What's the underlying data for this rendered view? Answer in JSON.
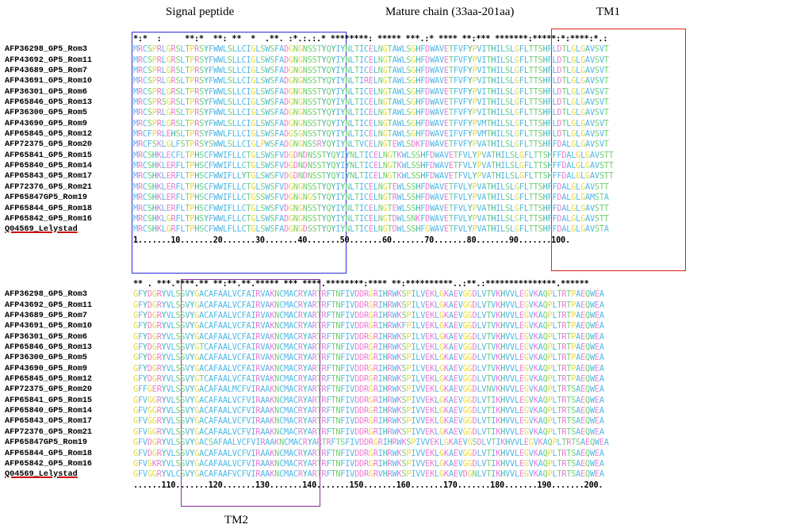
{
  "headers": {
    "signal_peptide": "Signal peptide",
    "mature_chain": "Mature chain (33aa-201aa)",
    "tm1": "TM1",
    "tm2": "TM2"
  },
  "colors": {
    "signal_box": "#2c2cd8",
    "tm1_box": "#e02020",
    "tm2_box": "#8a2b9a",
    "reference_underline": "#cc0000",
    "residue_hydrophobic": "#4fb8e6",
    "residue_polar": "#6fcf6f",
    "residue_positive": "#e67ad8",
    "residue_negative": "#f07ad0",
    "residue_special": "#e8d83a",
    "residue_substitution": "#000000"
  },
  "alignment": {
    "block1": {
      "consensus": "*:*  :     **:*  **: **  *  .**. :*.:.:.* ********: ***** ***.:* **** **:*** *******:*****:*:****:*.:",
      "scale": "1.......10.......20.......30.......40.......50.......60.......70.......80.......90.......100.",
      "sequences": [
        {
          "name": "AFP36298_GP5_Rom3",
          "seq": "MRCSPRLGRSLTPRSYFWWLSLLCIGLSWSFADGNGNSSTYQYIYNLTICELNGTAWLSGHFDWAVETFVFYPVITHILSLGFLTTSHFLDTLGLGAVSVT"
        },
        {
          "name": "AFP43692_GP5_Rom11",
          "seq": "MRCSPRLGRSLTPRSYFWWLSLLCIGLSWSFADGNGNSSTYQYIYNLTICELNGTAWLSGHFDWAVETFVFYPVITHILSLGFLTTSHFLDTLGLGAVSVT"
        },
        {
          "name": "AFP43689_GP5_Rom7",
          "seq": "MRCSPRLGRSLTPRSYFWWLSLLCIGLSWSFADGNGNSSTYQYIYNLTICELNGTAWLSGHFDWAVETFVFYPVITHILSLGFLTTSHFLDTLGLGAVSVT"
        },
        {
          "name": "AFP43691_GP5_Rom10",
          "seq": "MRCSPRLGRSLTPRSYFWWLSLLCIGLSWSFADGNGNSSTYQYIYNLTIRELNGTAWLSGHFDWAVETFVFYPVITHILSLGFLTTSHFLDTLGLGAVSVT"
        },
        {
          "name": "AFP36301_GP5_Rom6",
          "seq": "MRCSPRLGRSLTPRSYFWWLSLLCIGLSWSFADGNGNSSTYQYIYNLTICELNGTAWLSGHFDWAVETFVFYPVITHILSLGFLTTSHFLDTLGLGAVSVT"
        },
        {
          "name": "AFP65846_GP5_Rom13",
          "seq": "MRCSPRSGRSLTPRSYFWWLSLLCIGLSWSFADGNGNSSTYQYIYNLTICELNGTAWLSGHFDWAVETFVFYPVITHILSLGFLTTSHFLDTLGLGAVSVT"
        },
        {
          "name": "AFP36300_GP5_Rom5",
          "seq": "MRCSPRLGRSLTPRSYFWWLSLLCIGLSWSFADGNGNSSTYQYIYNLTICELNGTAWLSGHFDWAVETFVFYPVITHILSLGFLTTSHFLDTLGLGAVSVT"
        },
        {
          "name": "AFP43690_GP5_Rom9",
          "seq": "MRCSPRLGRSLTPRSYFWWLSLLCIGLSWSFADGNGNSSTYQYIYNLTICELNGTAWLSGHFDWAVETFVFYPVMTHILSLGFLTTSHFLDTLGLGAVSVT"
        },
        {
          "name": "AFP65845_GP5_Rom12",
          "seq": "MRCFPRLEHSLTPRSYFWWLFLLCIGLSWSFADGSGNSSTYQYIYNLTICELNGTAWLSGHFDWAVEIFVFYPVMTHILSLGFLTTSHFLDTLGLGAVSVT"
        },
        {
          "name": "AFP72375_GP5_Rom20",
          "seq": "MRCFSKLGLFSTPRSYSWWLSLLCIGLPWSFADGNGNSSRYQYIYNLTVCELNGTEWLSDKFDWAVETFVFYPVATHILSLGFLTTSHFFDALGLGAVSVT"
        },
        {
          "name": "AFP65841_GP5_Rom15",
          "seq": "MRCSHKLECFLTPHSCFWWIFLLCTGLSWSFVDGDNDNSSTYQYIYNLTICELNGTKWLSSHFDWAVETFVLYPVATHILSLGFLTTSHFFDALGLGAVSTT"
        },
        {
          "name": "AFP65840_GP5_Rom14",
          "seq": "MRCSHKLERFLTPHSCFWWIFLLCTGLSWSFVDGDNDNSSTYQYIYNLTICELNGTKWLSSHFDWAVETFVLYPVATHILSLGFLTTSHFFDALGLGAVSTT"
        },
        {
          "name": "AFP65843_GP5_Rom17",
          "seq": "MRCSHKLERFLTPHSCFWWIFLLYTGLSWSFVDGDNDNSSTYQYIYNLTICELNGTKWLSSHFDWAVETFVLYPVATHILSLGFLTTSHFFDALGLGAVSTT"
        },
        {
          "name": "AFP72376_GP5_Rom21",
          "seq": "MRCSHKLERFLTPHSCFWWIFLLCTGLSWSFVDGNGNSSTYQYIYNLTICELNGTEWLSSHFDWAVETFVLYPVATHILSLGFLTTSHFFDALGLGAVSTT"
        },
        {
          "name": "AFP65847GP5_Rom19",
          "seq": "MRCSHKLERFLTPHSCFWWIFLLCTGSSWSFVDGNGNGSTYQYIYNLTICELNGTRWLSSHFDWAVETFVLYPVATHILSLGFLTTSHFFDALGLGAMSTA"
        },
        {
          "name": "AFP65844_GP5_Rom18",
          "seq": "MRCSHKLERFLTPHSCFWWIFLLCTGLSWSFVDGNGNSSTYQYIYNLTICELNGTEWLSSHFDWAVETFVLYPVATHILSLGFLTTSHFFDALGLGAVSTT"
        },
        {
          "name": "AFP65842_GP5_Rom16",
          "seq": "MRCSHKLGRFLTPHSYFWWLFLLCTGLSWSFADGNGNSSTYQYIYNLTICELNGTDWLSNKFDWAVETFVLYPVATHILSLGFLTTSHFFDALGLGAVSTT"
        },
        {
          "name": "Q04569_Lelystad",
          "seq": "MRCSHKLGRFLTPHSCFWWLFLLCTGLSWSFADGNGDSSTYQYIYNLTICELNGTDWLSSHFGWAVETFVLYPVATHILSLGFLTTSHFFDALGLGAVSTA"
        }
      ]
    },
    "block2": {
      "consensus": "** . ***.****.** **:**.**.***** *** ****.********:**** **:**********..:**.:***************.******",
      "scale": "......110.......120.......130.......140.......150.......160.......170.......180.......190.......200.",
      "sequences": [
        {
          "name": "AFP36298_GP5_Rom3",
          "seq": "GFYDGRYVLSSVYGACAFAALVCFAIRVAKNCMACRYARTRFTNFIVDDRGRIHRWKSPILVEKLGKAEVGGDLVTVKHVVLEGVKAQPLTRTPAEQWEA"
        },
        {
          "name": "AFP43692_GP5_Rom11",
          "seq": "GFYDGRYVLSSVYGACAFAALVCFAIRVAKNCMACRYARTRFTNFIVDDRGRIHRWKSPILVEKLGKAEVGGDLVTVKHVVLEGVKAQPLTRTPAEQWEA"
        },
        {
          "name": "AFP43689_GP5_Rom7",
          "seq": "GFYDGRYVLSSVYGACAFAALVCFAIRVAKNCMACRYARTRFTNFIVDDRGRIHRWKSPILVEKLGKAEVGGDLVTVKHVVLEGVKAQPLTRTPAEQWEA"
        },
        {
          "name": "AFP43691_GP5_Rom10",
          "seq": "GFYDGRYVLSSVYGACAFAALVCFAIRVAKNCMACRYARTRFTNFIVDDRGRIHRWKFPILVEKLGKAEVGGDLVTVKHVVLEGVKAQPLTRTPAEQWEA"
        },
        {
          "name": "AFP36301_GP5_Rom6",
          "seq": "GFYDGRYVLSSVYGACAFAALVCFAIRVAKNCMACRYARTRFTNFIVDDRGRIHRWKSPILVEKLGKAEVGGDLVTVKHVVLEGVKAQPLTRTPAEQWEA"
        },
        {
          "name": "AFP65846_GP5_Rom13",
          "seq": "GFYDGRYVLSSVYGTCAFAALVCFAIRVAKNCMACRYARTRFTNFIVDDRGRIHRWKSPILVEKLGKAEVGGDLVTVKHVVLEGVKAQPLTRTPAEQWEA"
        },
        {
          "name": "AFP36300_GP5_Rom5",
          "seq": "GFYDGRYVLSSVYGACAFAALVCFAIRVAKNCMACRYARTRFTNFIVDDRGRIHRWKSPILVEKLGKAEVGGDLVTVKHVVLEGVKAQPLTRTPAEQWEA"
        },
        {
          "name": "AFP43690_GP5_Rom9",
          "seq": "GFYDGRYVLSSVYGACAFAALVCFAIRVAKNCMACRYARTRFTNFIVDDRGRIHRWKSPILVEKLGKAEVGGDLVTVKHVVLEGVKAQPLTRTPAEQWEA"
        },
        {
          "name": "AFP65845_GP5_Rom12",
          "seq": "GFYDGRYVLSSVYGTCAFAALVCFAIRVAKNCMACRYARTRFTNFIVDDRGRIHRWKSPILVEKLGKAEVGGDLVTVKHVVLEGVKAQPLTRTPAEQWEA"
        },
        {
          "name": "AFP72375_GP5_Rom20",
          "seq": "GFFGERYVLSSVYGACAFAALMCFVIRAAKNCMACRYARTRFTNFIVDDRGRIHRWKSPIVVEKLGKAEVGGDLVNVKHVVLEGVKAQPLTRTSAEQWEA"
        },
        {
          "name": "AFP65841_GP5_Rom15",
          "seq": "GFVGGRYVLSSVYGACAFAALVCFVIRAAKNCMACRYARTRFTNFIVDDRGRIHRWKSPIVVEKLGKAEVGGDLVTIKHVVLEGVKAQPLTRTSAEQWEA"
        },
        {
          "name": "AFP65840_GP5_Rom14",
          "seq": "GFVGGRYVLSSVYGACAFAALVCFVIRAAKNCMACRYARTRFTNFIVDDRGRIHRWKSPIVVEKLGKAEVGGDLVTIKHVVLEGVKAQPLTRTSAEQWEA"
        },
        {
          "name": "AFP65843_GP5_Rom17",
          "seq": "GFVGGRYVLSSVYGACAFAALVCFVIRAAKNCMACRYARTRFTNFIVDDRGRIHRWKSPIVVEKLGKAEVGGDLVTIKHVVLEGVKAQPLTRTSAEQWEA"
        },
        {
          "name": "AFP72376_GP5_Rom21",
          "seq": "GFVGGRYVLSSVYGACAFAALVCFVIRAAKNCMACRYARTRFTNFIVDDRGRIHRWKSPIVVEKLGKAEVGGDLVTIKHVVLEGVKAQPLTRTSAEQWEA"
        },
        {
          "name": "AFP65847GP5_Rom19",
          "seq": "GFVDGRYVLSSVYGACSAFAALVCFVIRAAKNCMACRYARTRFTSFIVDDRGRIHRWKSPIVVEKLGKAEVGSDLVTIKHVVLEGVKAQPLTRTSAEQWEA"
        },
        {
          "name": "AFP65844_GP5_Rom18",
          "seq": "GFVDGRYVLSSVYGACAFAALVCFVIRAAKNCMACRYARTRFTNFIVDDRGRIHRWKSPIVVEKLGKAEVGGDLVTIKHVVLEGVKAQPLTRTSAEQWEA"
        },
        {
          "name": "AFP65842_GP5_Rom16",
          "seq": "GFVGKRYVLSSVYGACAFAALVCFVIRAAKNCMACRYARTRFTNFIVDDRGRIHRWKSPIVVEKLGKAEVGGDLVTIKHVVLEGVKAQPLTRTSAEQWEA"
        },
        {
          "name": "Q04569_Lelystad",
          "seq": "GFVGGRYVLCSVYGACAFAAFVCFVIRAAKNCMACRYARTRFTNFIVDDRGRVHRWKSPIVVEKLGKAEVDGNLVTIKHVVLEGVKAQPLTRTSAEQWEA"
        }
      ]
    }
  }
}
